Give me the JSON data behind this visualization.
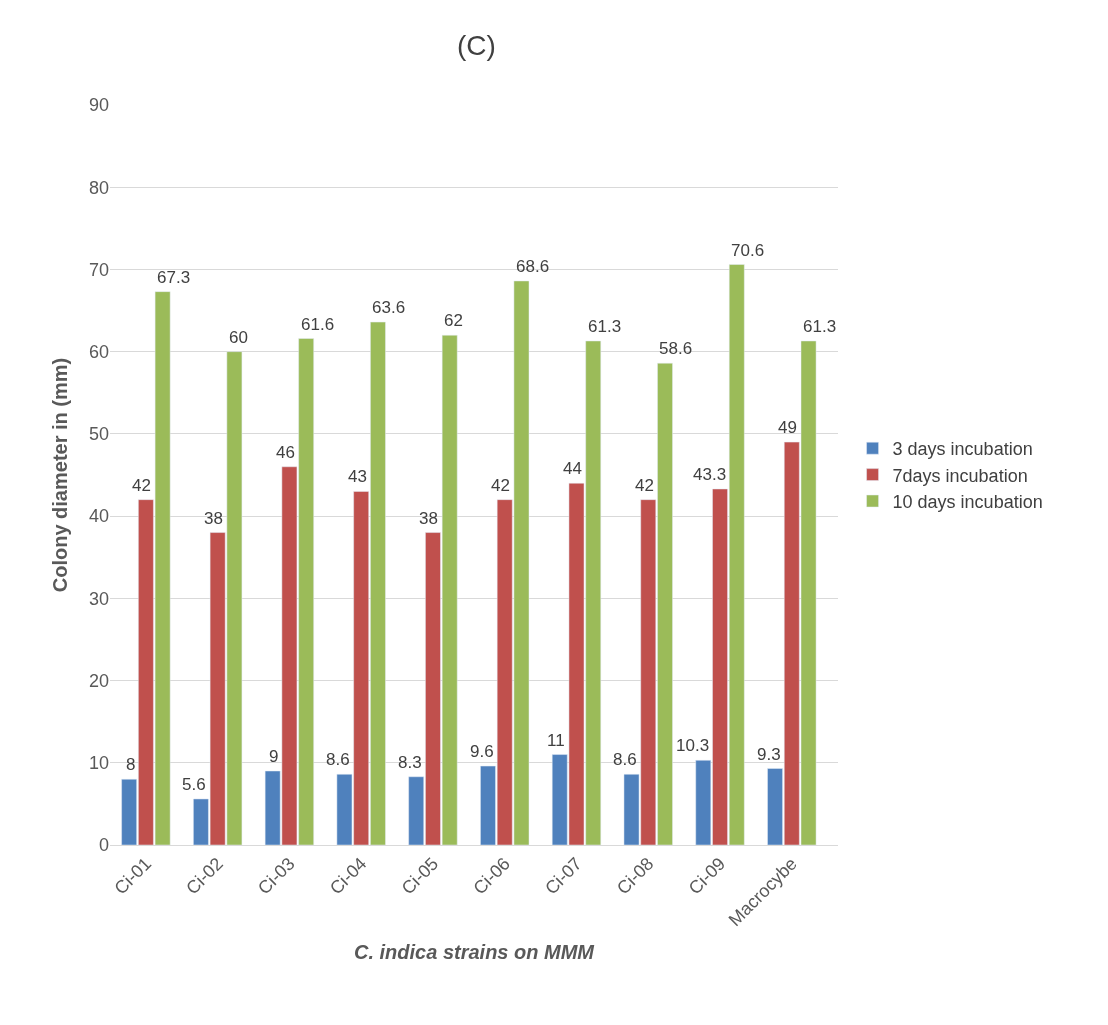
{
  "chart_data": {
    "type": "bar",
    "title": "(C)",
    "xlabel": "C. indica strains on MMM",
    "ylabel": "Colony diameter in (mm)",
    "categories": [
      "Ci-01",
      "Ci-02",
      "Ci-03",
      "Ci-04",
      "Ci-05",
      "Ci-06",
      "Ci-07",
      "Ci-08",
      "Ci-09",
      "Macrocybe"
    ],
    "series": [
      {
        "name": "3 days incubation",
        "color": "#4f81bd",
        "values": [
          8,
          5.6,
          9,
          8.6,
          8.3,
          9.6,
          11,
          8.6,
          10.3,
          9.3
        ]
      },
      {
        "name": "7days incubation",
        "color": "#c0504d",
        "values": [
          42,
          38,
          46,
          43,
          38,
          42,
          44,
          42,
          43.3,
          49
        ]
      },
      {
        "name": "10 days incubation",
        "color": "#9bbb59",
        "values": [
          67.3,
          60,
          61.6,
          63.6,
          62,
          68.6,
          61.3,
          58.6,
          70.6,
          61.3
        ]
      }
    ],
    "ylim": [
      0,
      90
    ],
    "yticks": [
      0,
      10,
      20,
      30,
      40,
      50,
      60,
      70,
      80,
      90
    ],
    "grid": "y",
    "legend": "right",
    "data_labels": true
  }
}
